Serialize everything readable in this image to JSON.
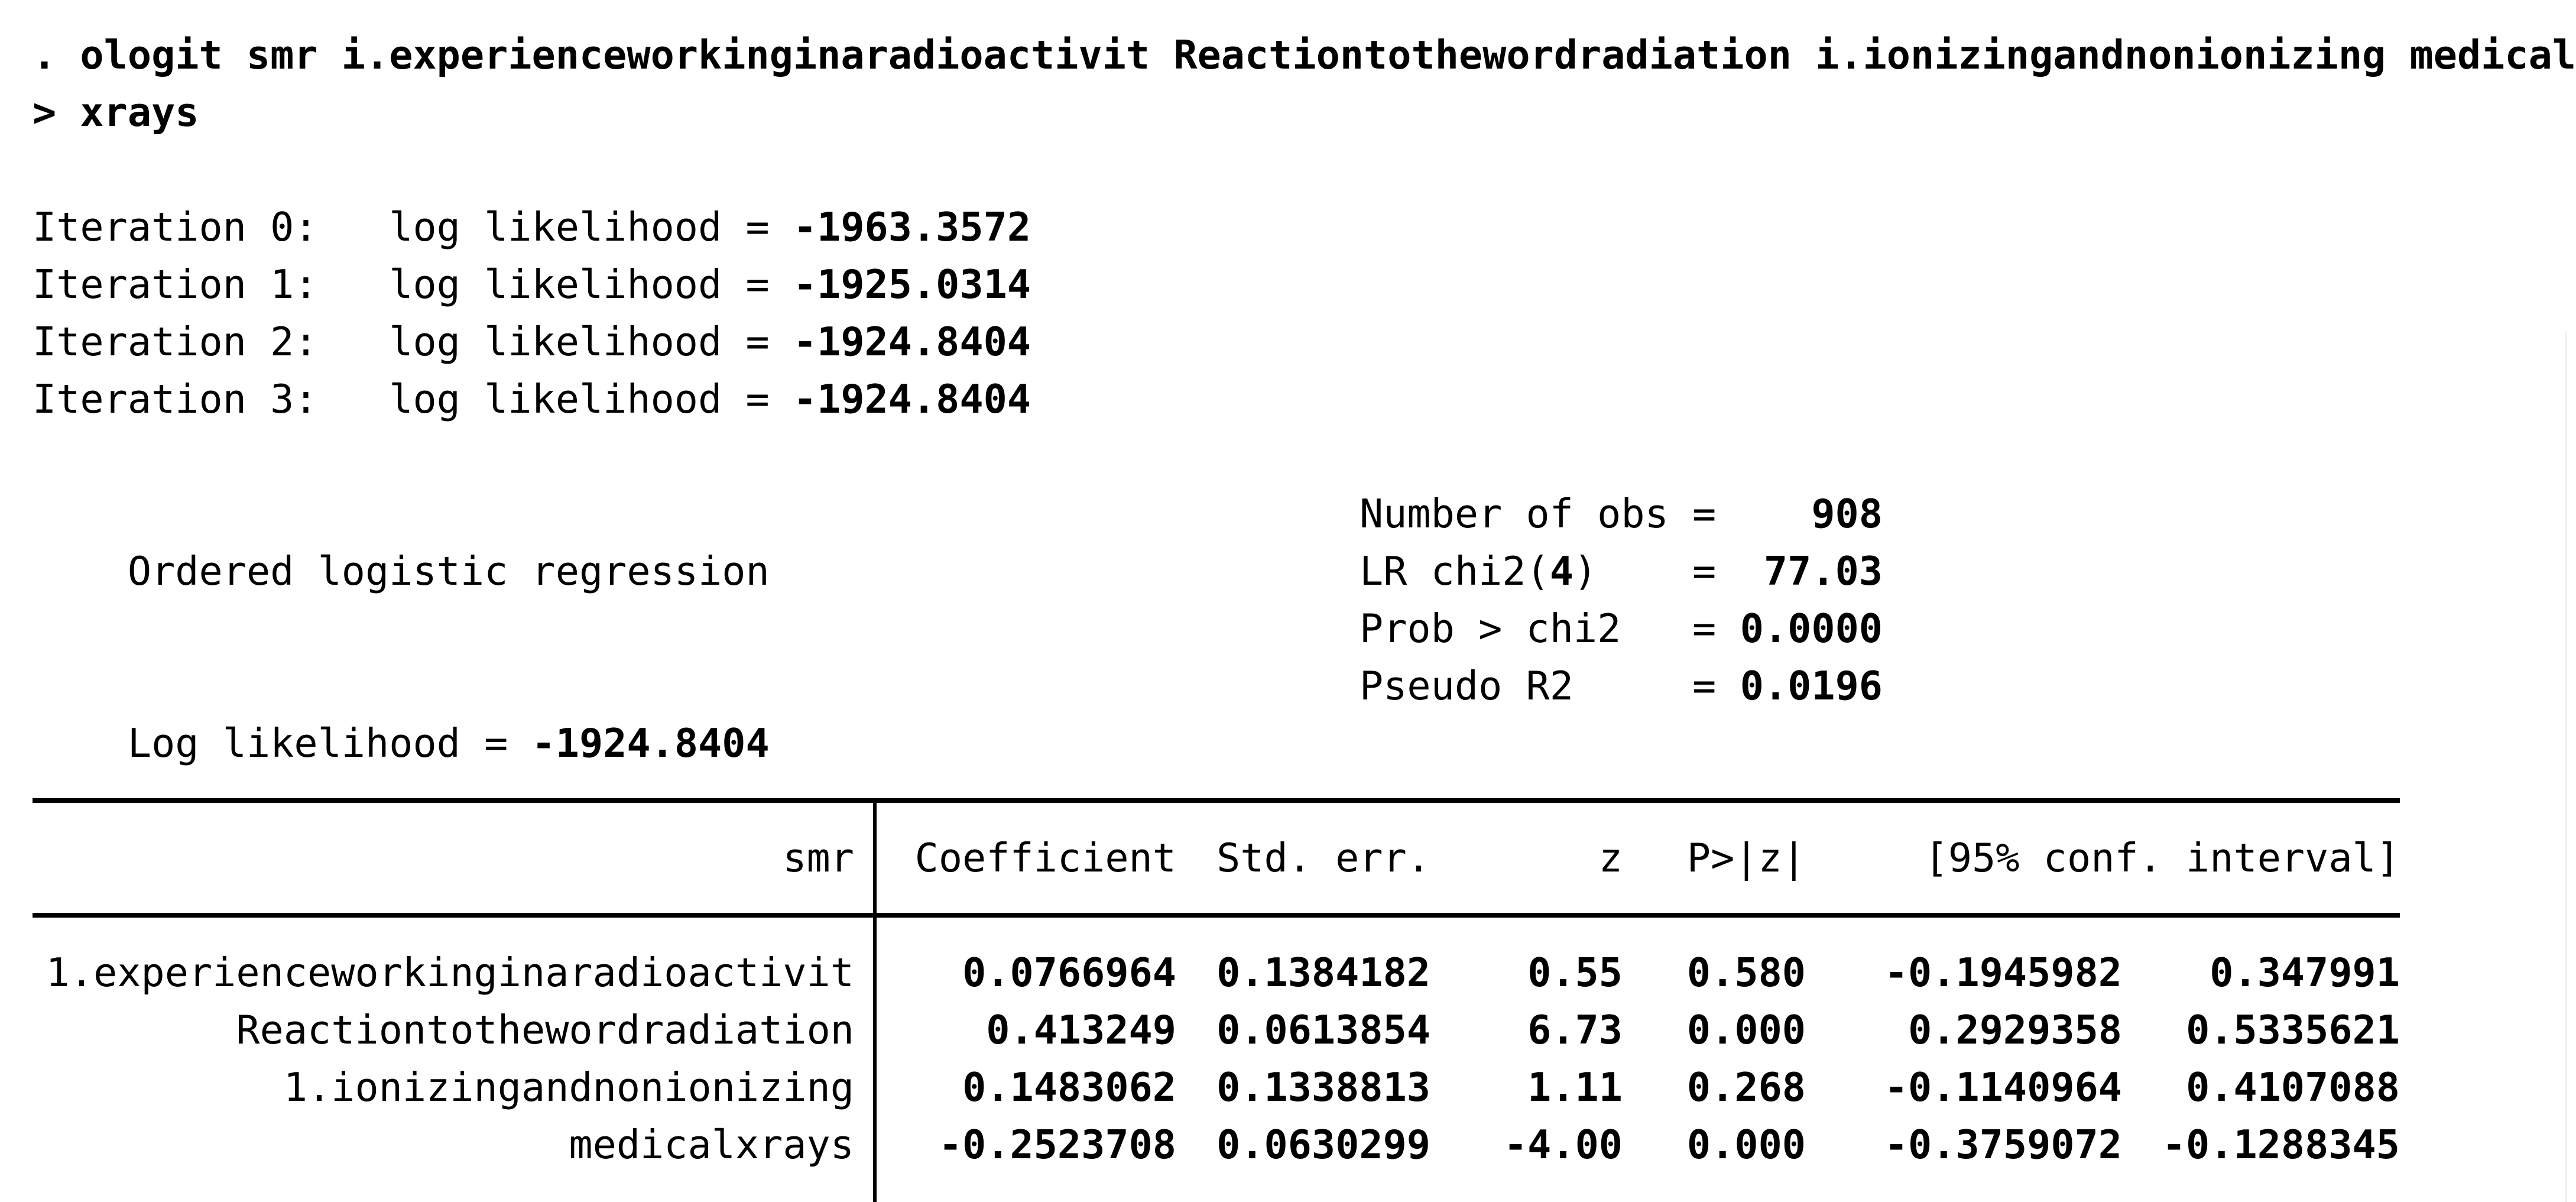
{
  "colors": {
    "text": "#000000",
    "background": "#ffffff",
    "rule": "#000000"
  },
  "command": {
    "line1": ". ologit smr i.experienceworkinginaradioactivit Reactiontothewordradiation i.ionizingandnonionizing medical",
    "line2": "> xrays"
  },
  "iterations": [
    {
      "label": "Iteration 0:   log likelihood = ",
      "value": "-1963.3572"
    },
    {
      "label": "Iteration 1:   log likelihood = ",
      "value": "-1925.0314"
    },
    {
      "label": "Iteration 2:   log likelihood = ",
      "value": "-1924.8404"
    },
    {
      "label": "Iteration 3:   log likelihood = ",
      "value": "-1924.8404"
    }
  ],
  "model": {
    "title": "Ordered logistic regression",
    "loglik_label": "Log likelihood = ",
    "loglik_value": "-1924.8404",
    "eq": "=",
    "stats": [
      {
        "pre": "Number of obs",
        "df": "",
        "post": "",
        "value": "908"
      },
      {
        "pre": "LR chi2(",
        "df": "4",
        "post": ")",
        "value": "77.03"
      },
      {
        "pre": "Prob > chi2",
        "df": "",
        "post": "",
        "value": "0.0000"
      },
      {
        "pre": "Pseudo R2",
        "df": "",
        "post": "",
        "value": "0.0196"
      }
    ]
  },
  "table": {
    "depvar": "smr",
    "headers": {
      "coef": "Coefficient",
      "se": "Std. err.",
      "z": "z",
      "p": "P>|z|",
      "ci": "[95% conf. interval]"
    },
    "rows": [
      {
        "name": "1.experienceworkinginaradioactivit",
        "coef": "0.0766964",
        "se": "0.1384182",
        "z": "0.55",
        "p": "0.580",
        "lo": "-0.1945982",
        "hi": "0.347991"
      },
      {
        "name": "Reactiontothewordradiation",
        "coef": "0.413249",
        "se": "0.0613854",
        "z": "6.73",
        "p": "0.000",
        "lo": "0.2929358",
        "hi": "0.5335621"
      },
      {
        "name": "1.ionizingandnonionizing",
        "coef": "0.1483062",
        "se": "0.1338813",
        "z": "1.11",
        "p": "0.268",
        "lo": "-0.1140964",
        "hi": "0.4107088"
      },
      {
        "name": "medicalxrays",
        "coef": "-0.2523708",
        "se": "0.0630299",
        "z": "-4.00",
        "p": "0.000",
        "lo": "-0.3759072",
        "hi": "-0.1288345"
      }
    ]
  }
}
